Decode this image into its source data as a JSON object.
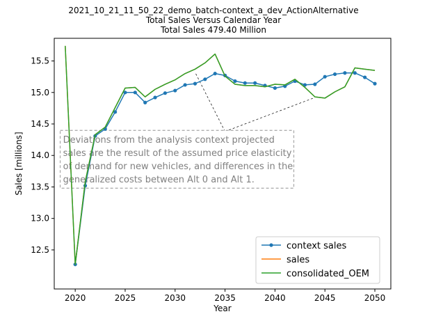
{
  "chart_data": {
    "type": "line",
    "title_lines": [
      "2021_10_21_11_50_22_demo_batch-context_a_dev_ActionAlternative",
      "Total Sales Versus Calendar Year",
      "Total Sales 479.40 Million"
    ],
    "xlabel": "Year",
    "ylabel": "Sales [millions]",
    "xlim": [
      2017.9,
      2051.6
    ],
    "ylim": [
      11.88,
      15.86
    ],
    "x_ticks": [
      2020,
      2025,
      2030,
      2035,
      2040,
      2045,
      2050
    ],
    "y_ticks": [
      12.5,
      13.0,
      13.5,
      14.0,
      14.5,
      15.0,
      15.5
    ],
    "grid": false,
    "legend_position": "lower-right",
    "series": [
      {
        "name": "context sales",
        "color": "#1f77b4",
        "marker": "circle",
        "x": [
          2020,
          2021,
          2022,
          2023,
          2024,
          2025,
          2026,
          2027,
          2028,
          2029,
          2030,
          2031,
          2032,
          2033,
          2034,
          2035,
          2036,
          2037,
          2038,
          2039,
          2040,
          2041,
          2042,
          2043,
          2044,
          2045,
          2046,
          2047,
          2048,
          2049,
          2050
        ],
        "y": [
          12.27,
          13.52,
          14.31,
          14.42,
          14.69,
          15.0,
          15.0,
          14.84,
          14.92,
          14.99,
          15.03,
          15.12,
          15.14,
          15.21,
          15.3,
          15.27,
          15.18,
          15.15,
          15.15,
          15.11,
          15.07,
          15.1,
          15.18,
          15.12,
          15.13,
          15.25,
          15.29,
          15.31,
          15.31,
          15.24,
          15.14
        ]
      },
      {
        "name": "sales",
        "color": "#ff7f0e",
        "marker": "none",
        "x": [
          2019,
          2020,
          2021,
          2022,
          2023,
          2024,
          2025,
          2026,
          2027,
          2028,
          2029,
          2030,
          2031,
          2032,
          2033,
          2034,
          2035,
          2036,
          2037,
          2038,
          2039,
          2040,
          2041,
          2042,
          2043,
          2044,
          2045,
          2046,
          2047,
          2048,
          2049,
          2050
        ],
        "y": [
          15.74,
          12.27,
          13.58,
          14.33,
          14.45,
          14.76,
          15.07,
          15.08,
          14.93,
          15.05,
          15.13,
          15.2,
          15.3,
          15.37,
          15.47,
          15.61,
          15.26,
          15.13,
          15.11,
          15.11,
          15.09,
          15.13,
          15.12,
          15.21,
          15.08,
          14.93,
          14.91,
          15.01,
          15.09,
          15.39,
          15.37,
          15.35
        ]
      },
      {
        "name": "consolidated_OEM",
        "color": "#2ca02c",
        "marker": "none",
        "x": [
          2019,
          2020,
          2021,
          2022,
          2023,
          2024,
          2025,
          2026,
          2027,
          2028,
          2029,
          2030,
          2031,
          2032,
          2033,
          2034,
          2035,
          2036,
          2037,
          2038,
          2039,
          2040,
          2041,
          2042,
          2043,
          2044,
          2045,
          2046,
          2047,
          2048,
          2049,
          2050
        ],
        "y": [
          15.74,
          12.27,
          13.58,
          14.33,
          14.45,
          14.76,
          15.07,
          15.08,
          14.93,
          15.05,
          15.13,
          15.2,
          15.3,
          15.37,
          15.47,
          15.61,
          15.26,
          15.13,
          15.11,
          15.11,
          15.09,
          15.13,
          15.12,
          15.21,
          15.08,
          14.93,
          14.91,
          15.01,
          15.09,
          15.39,
          15.37,
          15.35
        ]
      }
    ],
    "annotation": {
      "text_lines": [
        "Deviations from the analysis context projected",
        "sales are the result of the  assumed price elasticity",
        "of demand for new vehicles, and differences in the",
        "generalized costs between Alt 0 and Alt 1."
      ],
      "color": "#808080",
      "box_style": "dashed",
      "box_anchor": [
        2018.5,
        14.31
      ],
      "arrow_from": [
        2035,
        14.38
      ],
      "arrow_to": [
        [
          2032,
          15.32
        ],
        [
          2044,
          14.92
        ]
      ]
    }
  }
}
